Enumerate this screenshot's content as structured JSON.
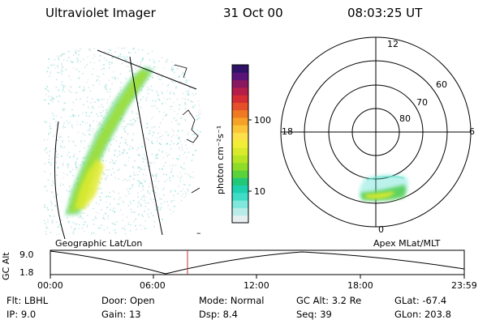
{
  "header": {
    "title": "Ultraviolet Imager",
    "date": "31 Oct 00",
    "time": "08:03:25 UT"
  },
  "colorbar": {
    "unit_label": "photon cm⁻²s⁻¹",
    "tick_100": "100",
    "tick_10": "10",
    "colors": [
      "#e6eef0",
      "#b9ece8",
      "#7fe7dc",
      "#3fdcc8",
      "#1fd0b0",
      "#22c878",
      "#5ad23c",
      "#8edc28",
      "#b8e426",
      "#d8ea2a",
      "#f2ee38",
      "#fde04a",
      "#fbc43a",
      "#f6a228",
      "#ef7a22",
      "#e5502a",
      "#d42e34",
      "#b41e48",
      "#8a1860",
      "#5a1478",
      "#2e1268"
    ]
  },
  "geo_map": {
    "label": "Geographic Lat/Lon",
    "tick_mark": "–"
  },
  "polar_plot": {
    "label": "Apex MLat/MLT",
    "mlt_labels": {
      "top": "12",
      "left": "18",
      "right": "6",
      "bottom": "0"
    },
    "lat_labels": [
      "60",
      "70",
      "80"
    ]
  },
  "altitude_plot": {
    "axis_label": "GC Alt",
    "y_ticks": [
      "9.0",
      "1.8"
    ],
    "x_ticks": [
      "00:00",
      "06:00",
      "12:00",
      "18:00",
      "23:59"
    ],
    "marker_color": "#c03030"
  },
  "footer": {
    "row1": {
      "flt": "Flt: LBHL",
      "door": "Door: Open",
      "mode": "Mode: Normal",
      "gcalt": "GC Alt: 3.2 Re",
      "glat": "GLat: -67.4"
    },
    "row2": {
      "ip": "IP:  9.0",
      "gain": "Gain: 13",
      "dsp": "Dsp:    8.4",
      "seq": "Seq: 39",
      "glon": "GLon: 203.8"
    }
  }
}
